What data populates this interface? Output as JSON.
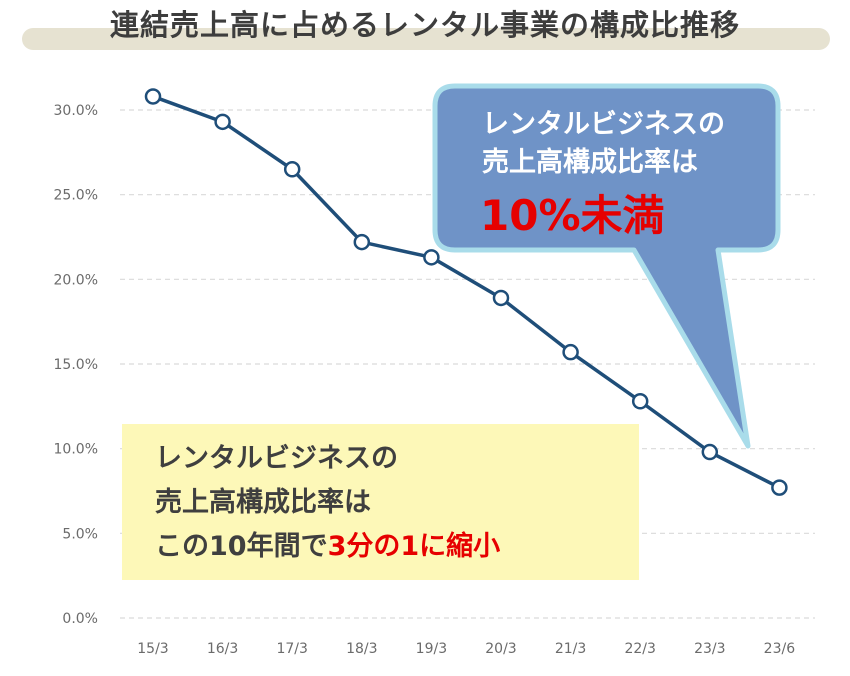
{
  "title": "連結売上高に占めるレンタル事業の構成比推移",
  "colors": {
    "line": "#1f4e79",
    "grid": "#d9d9d9",
    "callout_fill": "#6f93c7",
    "callout_border": "#a9dcea",
    "note_fill": "#fdf8b8",
    "highlight": "#e60000"
  },
  "chart_data": {
    "type": "line",
    "categories": [
      "15/3",
      "16/3",
      "17/3",
      "18/3",
      "19/3",
      "20/3",
      "21/3",
      "22/3",
      "23/3",
      "23/6"
    ],
    "series": [
      {
        "values": [
          30.8,
          29.3,
          26.5,
          22.2,
          21.3,
          18.9,
          15.7,
          12.8,
          9.8,
          7.7
        ]
      }
    ],
    "ylim": [
      0,
      30
    ],
    "yticks": [
      "0.0%",
      "5.0%",
      "10.0%",
      "15.0%",
      "20.0%",
      "25.0%",
      "30.0%"
    ],
    "grid": true
  },
  "note": {
    "line1": "レンタルビジネスの",
    "line2": "売上高構成比率は",
    "line3_prefix": "この10年間で",
    "line3_highlight": "3分の1に縮小"
  },
  "callout": {
    "line1": "レンタルビジネスの",
    "line2": "売上高構成比率は",
    "big": "10%未満"
  }
}
